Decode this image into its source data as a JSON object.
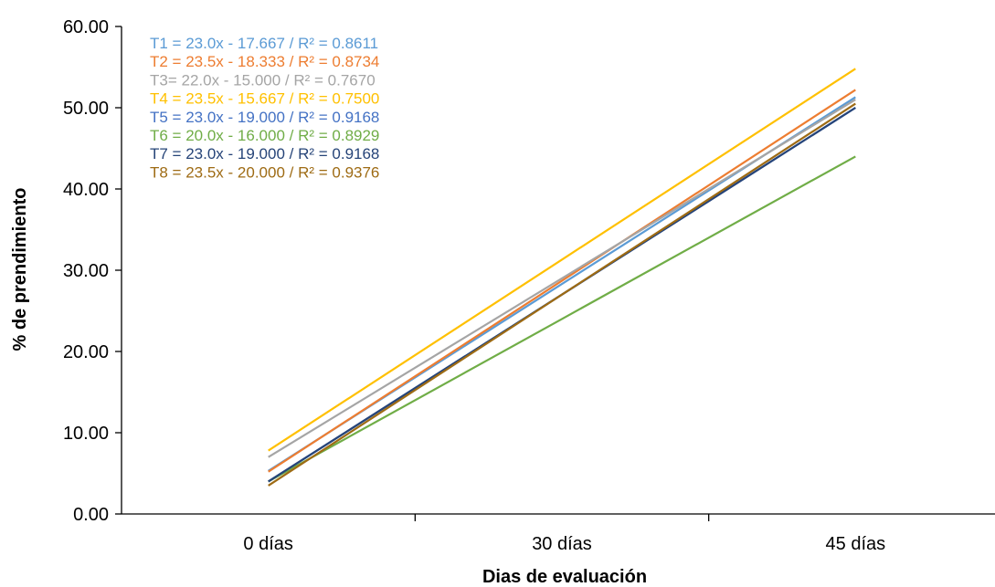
{
  "chart_data": {
    "type": "line",
    "categories": [
      "0 días",
      "30 días",
      "45 días"
    ],
    "xlabel": "Dias de evaluación",
    "ylabel": "% de prendimiento",
    "ylim": [
      0,
      60
    ],
    "yticks": [
      "0.00",
      "10.00",
      "20.00",
      "30.00",
      "40.00",
      "50.00",
      "60.00"
    ],
    "grid": false,
    "legend": "top-left",
    "series": [
      {
        "name": "T1",
        "label": "T1 = 23.0x - 17.667 / R² = 0.8611",
        "color": "#5b9bd5",
        "values": [
          5.3,
          28.3,
          51.3
        ]
      },
      {
        "name": "T2",
        "label": "T2 = 23.5x - 18.333 / R² = 0.8734",
        "color": "#ed7d31",
        "values": [
          5.2,
          28.7,
          52.2
        ]
      },
      {
        "name": "T3",
        "label": "T3= 22.0x - 15.000 / R² = 0.7670",
        "color": "#a5a5a5",
        "values": [
          7.0,
          29.0,
          51.0
        ]
      },
      {
        "name": "T4",
        "label": "T4 = 23.5x - 15.667 / R² = 0.7500",
        "color": "#ffc000",
        "values": [
          7.8,
          31.3,
          54.8
        ]
      },
      {
        "name": "T5",
        "label": "T5 = 23.0x - 19.000 / R² = 0.9168",
        "color": "#4472c4",
        "values": [
          4.0,
          27.0,
          50.0
        ]
      },
      {
        "name": "T6",
        "label": "T6 = 20.0x - 16.000 / R² = 0.8929",
        "color": "#70ad47",
        "values": [
          4.0,
          24.0,
          44.0
        ]
      },
      {
        "name": "T7",
        "label": "T7 = 23.0x - 19.000 / R² = 0.9168",
        "color": "#264478",
        "values": [
          4.0,
          27.0,
          50.0
        ]
      },
      {
        "name": "T8",
        "label": "T8 = 23.5x - 20.000 / R² = 0.9376",
        "color": "#9e6b14",
        "values": [
          3.5,
          27.0,
          50.5
        ]
      }
    ]
  }
}
